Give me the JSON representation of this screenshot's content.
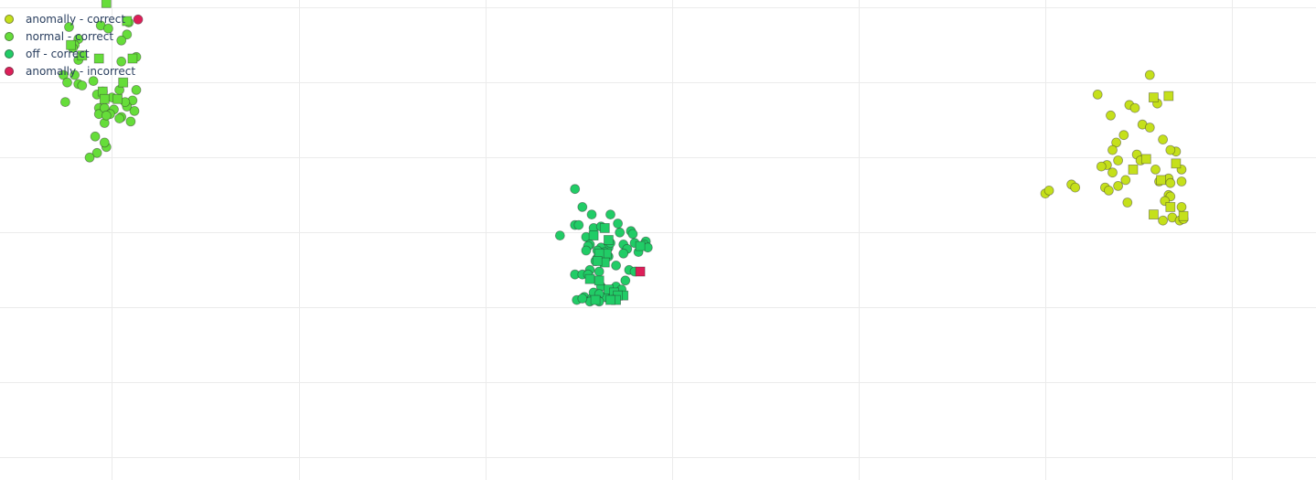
{
  "chart_data": {
    "type": "scatter",
    "title": "",
    "xlabel": "",
    "ylabel": "",
    "grid": true,
    "legend_position": "top-left",
    "xlim": [
      -1.6,
      5.45
    ],
    "ylim": [
      -0.15,
      3.05
    ],
    "series": [
      {
        "name": "anomally - correct",
        "color": "#c5e01b",
        "circles": [
          [
            4.28,
            2.42
          ],
          [
            4.56,
            2.55
          ],
          [
            4.35,
            2.28
          ],
          [
            4.45,
            2.35
          ],
          [
            4.48,
            2.33
          ],
          [
            4.6,
            2.36
          ],
          [
            4.52,
            2.22
          ],
          [
            4.42,
            2.15
          ],
          [
            4.56,
            2.2
          ],
          [
            4.38,
            2.1
          ],
          [
            4.36,
            2.05
          ],
          [
            4.63,
            2.12
          ],
          [
            4.7,
            2.04
          ],
          [
            4.49,
            2.02
          ],
          [
            4.67,
            2.05
          ],
          [
            4.39,
            1.98
          ],
          [
            4.33,
            1.95
          ],
          [
            4.51,
            1.98
          ],
          [
            4.59,
            1.92
          ],
          [
            4.73,
            1.92
          ],
          [
            4.3,
            1.94
          ],
          [
            4.36,
            1.9
          ],
          [
            4.66,
            1.86
          ],
          [
            4.73,
            1.84
          ],
          [
            4.43,
            1.85
          ],
          [
            4.61,
            1.84
          ],
          [
            4.67,
            1.83
          ],
          [
            4.39,
            1.81
          ],
          [
            4.14,
            1.82
          ],
          [
            4.32,
            1.8
          ],
          [
            4.34,
            1.78
          ],
          [
            4.16,
            1.8
          ],
          [
            4.0,
            1.76
          ],
          [
            4.02,
            1.78
          ],
          [
            4.66,
            1.75
          ],
          [
            4.67,
            1.74
          ],
          [
            4.64,
            1.71
          ],
          [
            4.44,
            1.7
          ],
          [
            4.73,
            1.67
          ],
          [
            4.68,
            1.6
          ],
          [
            4.63,
            1.58
          ],
          [
            4.72,
            1.58
          ],
          [
            4.74,
            1.59
          ]
        ],
        "squares": [
          [
            4.58,
            2.4
          ],
          [
            4.66,
            2.41
          ],
          [
            4.54,
            1.99
          ],
          [
            4.7,
            1.96
          ],
          [
            4.62,
            1.85
          ],
          [
            4.47,
            1.92
          ],
          [
            4.67,
            1.67
          ],
          [
            4.58,
            1.62
          ],
          [
            4.74,
            1.61
          ]
        ]
      },
      {
        "name": "normal - correct",
        "color": "#66dd3a",
        "circles": [
          [
            -1.06,
            2.88
          ],
          [
            -0.91,
            2.9
          ],
          [
            -1.23,
            2.87
          ],
          [
            -0.92,
            2.82
          ],
          [
            -1.02,
            2.86
          ],
          [
            -0.95,
            2.78
          ],
          [
            -1.18,
            2.79
          ],
          [
            -1.2,
            2.75
          ],
          [
            -1.21,
            2.73
          ],
          [
            -1.18,
            2.65
          ],
          [
            -0.95,
            2.64
          ],
          [
            -0.87,
            2.67
          ],
          [
            -1.26,
            2.55
          ],
          [
            -1.2,
            2.55
          ],
          [
            -1.1,
            2.51
          ],
          [
            -0.87,
            2.45
          ],
          [
            -1.24,
            2.5
          ],
          [
            -1.18,
            2.49
          ],
          [
            -1.16,
            2.48
          ],
          [
            -1.05,
            2.44
          ],
          [
            -0.96,
            2.45
          ],
          [
            -1.0,
            2.4
          ],
          [
            -1.08,
            2.42
          ],
          [
            -0.89,
            2.38
          ],
          [
            -1.25,
            2.37
          ],
          [
            -0.92,
            2.34
          ],
          [
            -0.93,
            2.37
          ],
          [
            -1.07,
            2.33
          ],
          [
            -0.99,
            2.32
          ],
          [
            -0.88,
            2.31
          ],
          [
            -1.07,
            2.29
          ],
          [
            -1.04,
            2.33
          ],
          [
            -1.01,
            2.29
          ],
          [
            -0.95,
            2.27
          ],
          [
            -0.96,
            2.26
          ],
          [
            -0.9,
            2.24
          ],
          [
            -1.04,
            2.23
          ],
          [
            -1.03,
            2.28
          ],
          [
            -1.09,
            2.14
          ],
          [
            -1.08,
            2.03
          ],
          [
            -1.03,
            2.07
          ],
          [
            -1.04,
            2.1
          ],
          [
            -1.12,
            2.0
          ]
        ],
        "squares": [
          [
            -1.03,
            3.03
          ],
          [
            -0.92,
            2.91
          ],
          [
            -1.22,
            2.75
          ],
          [
            -1.16,
            2.68
          ],
          [
            -1.07,
            2.66
          ],
          [
            -0.89,
            2.66
          ],
          [
            -0.94,
            2.5
          ],
          [
            -1.05,
            2.44
          ],
          [
            -1.04,
            2.39
          ],
          [
            -0.97,
            2.39
          ]
        ]
      },
      {
        "name": "off - correct",
        "color": "#21cc66",
        "circles": [
          [
            1.48,
            1.79
          ],
          [
            1.52,
            1.67
          ],
          [
            1.57,
            1.62
          ],
          [
            1.67,
            1.62
          ],
          [
            1.48,
            1.55
          ],
          [
            1.5,
            1.55
          ],
          [
            1.58,
            1.53
          ],
          [
            1.62,
            1.54
          ],
          [
            1.72,
            1.5
          ],
          [
            1.71,
            1.56
          ],
          [
            1.78,
            1.51
          ],
          [
            1.79,
            1.49
          ],
          [
            1.54,
            1.47
          ],
          [
            1.4,
            1.48
          ],
          [
            1.56,
            1.42
          ],
          [
            1.55,
            1.41
          ],
          [
            1.66,
            1.4
          ],
          [
            1.74,
            1.42
          ],
          [
            1.67,
            1.43
          ],
          [
            1.62,
            1.4
          ],
          [
            1.8,
            1.43
          ],
          [
            1.86,
            1.44
          ],
          [
            1.85,
            1.42
          ],
          [
            1.76,
            1.39
          ],
          [
            1.87,
            1.4
          ],
          [
            1.54,
            1.38
          ],
          [
            1.6,
            1.38
          ],
          [
            1.64,
            1.37
          ],
          [
            1.74,
            1.36
          ],
          [
            1.82,
            1.37
          ],
          [
            1.66,
            1.34
          ],
          [
            1.59,
            1.31
          ],
          [
            1.6,
            1.33
          ],
          [
            1.7,
            1.28
          ],
          [
            1.77,
            1.25
          ],
          [
            1.61,
            1.24
          ],
          [
            1.48,
            1.22
          ],
          [
            1.52,
            1.22
          ],
          [
            1.56,
            1.25
          ],
          [
            1.55,
            1.22
          ],
          [
            1.8,
            1.24
          ],
          [
            1.75,
            1.18
          ],
          [
            1.62,
            1.14
          ],
          [
            1.72,
            1.09
          ],
          [
            1.7,
            1.14
          ],
          [
            1.73,
            1.12
          ],
          [
            1.66,
            1.06
          ],
          [
            1.53,
            1.07
          ],
          [
            1.57,
            1.06
          ],
          [
            1.64,
            1.07
          ],
          [
            1.58,
            1.1
          ],
          [
            1.61,
            1.09
          ],
          [
            1.6,
            1.05
          ],
          [
            1.56,
            1.04
          ],
          [
            1.49,
            1.05
          ],
          [
            1.52,
            1.06
          ],
          [
            1.61,
            1.04
          ]
        ],
        "squares": [
          [
            1.64,
            1.53
          ],
          [
            1.58,
            1.48
          ],
          [
            1.66,
            1.45
          ],
          [
            1.83,
            1.41
          ],
          [
            1.65,
            1.36
          ],
          [
            1.61,
            1.36
          ],
          [
            1.64,
            1.3
          ],
          [
            1.6,
            1.31
          ],
          [
            1.61,
            1.18
          ],
          [
            1.56,
            1.19
          ],
          [
            1.66,
            1.12
          ],
          [
            1.69,
            1.1
          ],
          [
            1.74,
            1.08
          ],
          [
            1.71,
            1.08
          ],
          [
            1.7,
            1.05
          ],
          [
            1.59,
            1.05
          ],
          [
            1.67,
            1.05
          ]
        ]
      },
      {
        "name": "anomally - incorrect",
        "color": "#dd1f59",
        "circles": [
          [
            -0.86,
            2.92
          ]
        ],
        "squares": [
          [
            1.83,
            1.24
          ]
        ]
      }
    ]
  }
}
